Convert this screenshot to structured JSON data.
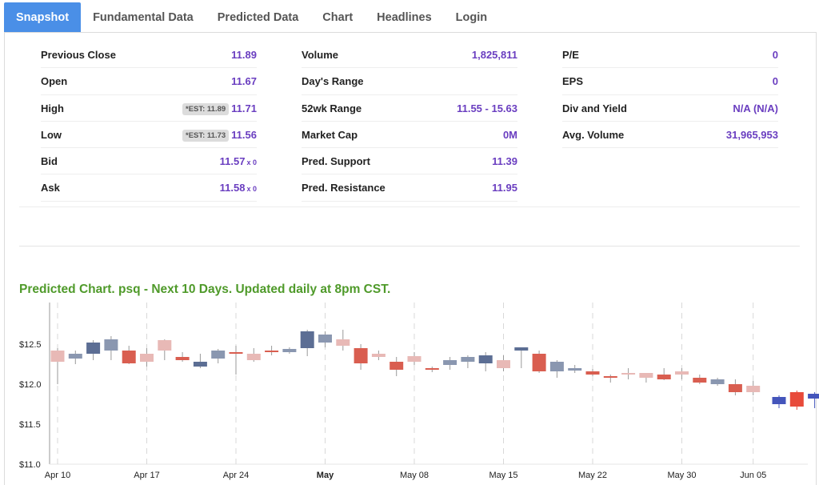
{
  "tabs": [
    {
      "label": "Snapshot",
      "active": true
    },
    {
      "label": "Fundamental Data",
      "active": false
    },
    {
      "label": "Predicted Data",
      "active": false
    },
    {
      "label": "Chart",
      "active": false
    },
    {
      "label": "Headlines",
      "active": false
    },
    {
      "label": "Login",
      "active": false
    }
  ],
  "snapshot": {
    "col1": [
      {
        "label": "Previous Close",
        "value": "11.89"
      },
      {
        "label": "Open",
        "value": "11.67"
      },
      {
        "label": "High",
        "value": "11.71",
        "est": "*EST: 11.89"
      },
      {
        "label": "Low",
        "value": "11.56",
        "est": "*EST: 11.73"
      },
      {
        "label": "Bid",
        "value": "11.57",
        "size": "x 0"
      },
      {
        "label": "Ask",
        "value": "11.58",
        "size": "x 0"
      }
    ],
    "col2": [
      {
        "label": "Volume",
        "value": "1,825,811"
      },
      {
        "label": "Day's Range",
        "value": ""
      },
      {
        "label": "52wk Range",
        "value": "11.55 - 15.63"
      },
      {
        "label": "Market Cap",
        "value": "0M"
      },
      {
        "label": "Pred. Support",
        "value": "11.39"
      },
      {
        "label": "Pred. Resistance",
        "value": "11.95"
      }
    ],
    "col3": [
      {
        "label": "P/E",
        "value": "0"
      },
      {
        "label": "EPS",
        "value": "0"
      },
      {
        "label": "Div and Yield",
        "value": "N/A (N/A)"
      },
      {
        "label": "Avg. Volume",
        "value": "31,965,953"
      }
    ]
  },
  "chart_title": "Predicted Chart. psq - Next 10 Days. Updated daily at 8pm CST.",
  "chart_data": {
    "type": "candlestick",
    "title": "Predicted Chart. psq - Next 10 Days. Updated daily at 8pm CST.",
    "ylim": [
      11.0,
      13.0
    ],
    "y_ticks": [
      {
        "value": 11.0,
        "label": "$11.0"
      },
      {
        "value": 11.5,
        "label": "$11.5"
      },
      {
        "value": 12.0,
        "label": "$12.0"
      },
      {
        "value": 12.5,
        "label": "$12.5"
      }
    ],
    "x_ticks": [
      {
        "index": 0,
        "label": "Apr 10",
        "bold": false
      },
      {
        "index": 5,
        "label": "Apr 17",
        "bold": false
      },
      {
        "index": 10,
        "label": "Apr 24",
        "bold": false
      },
      {
        "index": 15,
        "label": "May",
        "bold": true
      },
      {
        "index": 20,
        "label": "May 08",
        "bold": false
      },
      {
        "index": 25,
        "label": "May 15",
        "bold": false
      },
      {
        "index": 30,
        "label": "May 22",
        "bold": false
      },
      {
        "index": 35,
        "label": "May 30",
        "bold": false
      },
      {
        "index": 39,
        "label": "Jun 05",
        "bold": false
      }
    ],
    "colors": {
      "up": "#8a97b0",
      "down": "#e8b9b6",
      "up_strong": "#5c6e94",
      "down_strong": "#d95e50",
      "pred": "#4455bb",
      "pred_red": "#e84a3a",
      "wick": "#999999"
    },
    "candles": [
      {
        "o": 12.28,
        "h": 12.45,
        "l": 12.0,
        "c": 12.42,
        "style": "down"
      },
      {
        "o": 12.32,
        "h": 12.42,
        "l": 12.25,
        "c": 12.38,
        "style": "up"
      },
      {
        "o": 12.38,
        "h": 12.55,
        "l": 12.3,
        "c": 12.52,
        "style": "up_strong"
      },
      {
        "o": 12.42,
        "h": 12.6,
        "l": 12.3,
        "c": 12.56,
        "style": "up"
      },
      {
        "o": 12.42,
        "h": 12.48,
        "l": 12.25,
        "c": 12.26,
        "style": "down_strong"
      },
      {
        "o": 12.38,
        "h": 12.45,
        "l": 12.22,
        "c": 12.28,
        "style": "down"
      },
      {
        "o": 12.42,
        "h": 12.56,
        "l": 12.3,
        "c": 12.55,
        "style": "down"
      },
      {
        "o": 12.34,
        "h": 12.4,
        "l": 12.28,
        "c": 12.3,
        "style": "down_strong"
      },
      {
        "o": 12.28,
        "h": 12.38,
        "l": 12.2,
        "c": 12.22,
        "style": "up_strong"
      },
      {
        "o": 12.32,
        "h": 12.44,
        "l": 12.26,
        "c": 12.42,
        "style": "up"
      },
      {
        "o": 12.38,
        "h": 12.48,
        "l": 12.12,
        "c": 12.4,
        "style": "down_strong"
      },
      {
        "o": 12.3,
        "h": 12.45,
        "l": 12.28,
        "c": 12.38,
        "style": "down"
      },
      {
        "o": 12.4,
        "h": 12.48,
        "l": 12.36,
        "c": 12.42,
        "style": "down_strong"
      },
      {
        "o": 12.4,
        "h": 12.46,
        "l": 12.38,
        "c": 12.44,
        "style": "up"
      },
      {
        "o": 12.45,
        "h": 12.68,
        "l": 12.35,
        "c": 12.66,
        "style": "up_strong"
      },
      {
        "o": 12.52,
        "h": 12.66,
        "l": 12.46,
        "c": 12.62,
        "style": "up"
      },
      {
        "o": 12.48,
        "h": 12.68,
        "l": 12.42,
        "c": 12.56,
        "style": "down"
      },
      {
        "o": 12.45,
        "h": 12.5,
        "l": 12.18,
        "c": 12.26,
        "style": "down_strong"
      },
      {
        "o": 12.38,
        "h": 12.42,
        "l": 12.3,
        "c": 12.34,
        "style": "down"
      },
      {
        "o": 12.28,
        "h": 12.34,
        "l": 12.1,
        "c": 12.18,
        "style": "down_strong"
      },
      {
        "o": 12.35,
        "h": 12.4,
        "l": 12.24,
        "c": 12.28,
        "style": "down"
      },
      {
        "o": 12.2,
        "h": 12.22,
        "l": 12.15,
        "c": 12.18,
        "style": "down_strong"
      },
      {
        "o": 12.24,
        "h": 12.34,
        "l": 12.18,
        "c": 12.3,
        "style": "up"
      },
      {
        "o": 12.28,
        "h": 12.36,
        "l": 12.2,
        "c": 12.34,
        "style": "up"
      },
      {
        "o": 12.36,
        "h": 12.4,
        "l": 12.16,
        "c": 12.26,
        "style": "up_strong"
      },
      {
        "o": 12.3,
        "h": 12.36,
        "l": 12.16,
        "c": 12.2,
        "style": "down"
      },
      {
        "o": 12.42,
        "h": 12.46,
        "l": 12.2,
        "c": 12.46,
        "style": "up_strong"
      },
      {
        "o": 12.38,
        "h": 12.42,
        "l": 12.14,
        "c": 12.16,
        "style": "down_strong"
      },
      {
        "o": 12.16,
        "h": 12.3,
        "l": 12.08,
        "c": 12.28,
        "style": "up"
      },
      {
        "o": 12.2,
        "h": 12.24,
        "l": 12.14,
        "c": 12.17,
        "style": "up"
      },
      {
        "o": 12.16,
        "h": 12.19,
        "l": 12.1,
        "c": 12.12,
        "style": "down_strong"
      },
      {
        "o": 12.08,
        "h": 12.12,
        "l": 12.02,
        "c": 12.1,
        "style": "down_strong"
      },
      {
        "o": 12.12,
        "h": 12.2,
        "l": 12.06,
        "c": 12.14,
        "style": "down"
      },
      {
        "o": 12.08,
        "h": 12.14,
        "l": 12.02,
        "c": 12.14,
        "style": "down"
      },
      {
        "o": 12.12,
        "h": 12.2,
        "l": 12.05,
        "c": 12.06,
        "style": "down_strong"
      },
      {
        "o": 12.16,
        "h": 12.2,
        "l": 12.06,
        "c": 12.12,
        "style": "down"
      },
      {
        "o": 12.08,
        "h": 12.12,
        "l": 12.0,
        "c": 12.02,
        "style": "down_strong"
      },
      {
        "o": 12.06,
        "h": 12.08,
        "l": 11.98,
        "c": 12.0,
        "style": "up"
      },
      {
        "o": 12.0,
        "h": 12.06,
        "l": 11.86,
        "c": 11.9,
        "style": "down_strong"
      },
      {
        "o": 11.98,
        "h": 12.04,
        "l": 11.86,
        "c": 11.9,
        "style": "down"
      }
    ]
  }
}
